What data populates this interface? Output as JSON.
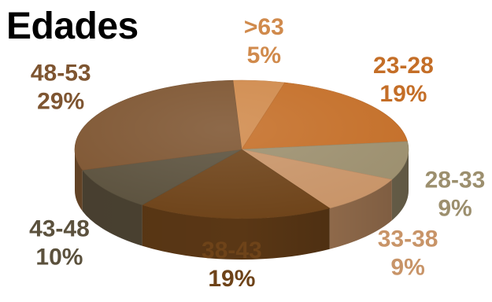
{
  "chart_data": {
    "type": "pie",
    "title": "Edades",
    "categories": [
      ">63",
      "23-28",
      "28-33",
      "33-38",
      "38-43",
      "43-48",
      "48-53"
    ],
    "values": [
      5,
      19,
      9,
      9,
      19,
      10,
      29
    ],
    "labels": [
      "5%",
      "19%",
      "9%",
      "9%",
      "19%",
      "10%",
      "29%"
    ],
    "colors": [
      "#D08A4C",
      "#C46E27",
      "#9C8F6E",
      "#C89468",
      "#6E4319",
      "#5B513D",
      "#7E5531"
    ],
    "label_colors": [
      "#D08A4C",
      "#C46E27",
      "#9C8F6E",
      "#C89468",
      "#6E4319",
      "#5B513D",
      "#7E5531"
    ],
    "three_d": true,
    "legend": "none"
  }
}
